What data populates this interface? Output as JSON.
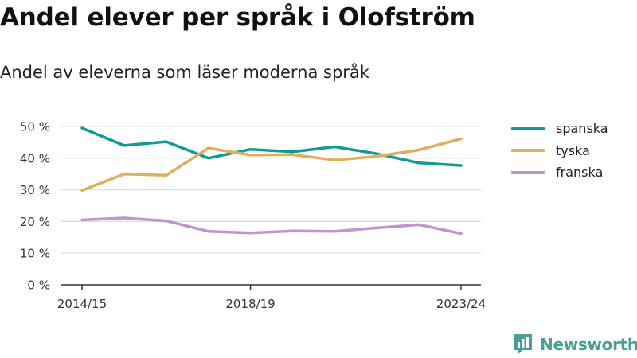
{
  "header": {
    "title": "Andel elever per språk i Olofström",
    "subtitle": "Andel av eleverna som läser moderna språk"
  },
  "brand": {
    "name": "Newsworthy",
    "icon": "newsworthy-logo-icon",
    "color": "#4a9e98"
  },
  "chart_data": {
    "type": "line",
    "x": [
      "2014/15",
      "2015/16",
      "2016/17",
      "2017/18",
      "2018/19",
      "2019/20",
      "2020/21",
      "2021/22",
      "2022/23",
      "2023/24"
    ],
    "x_tick_labels": [
      "2014/15",
      "2018/19",
      "2023/24"
    ],
    "y_ticks": [
      0,
      10,
      20,
      30,
      40,
      50
    ],
    "y_tick_labels": [
      "0 %",
      "10 %",
      "20 %",
      "30 %",
      "40 %",
      "50 %"
    ],
    "ylim": [
      0,
      50
    ],
    "grid": true,
    "legend": "right",
    "series": [
      {
        "name": "spanska",
        "color": "#0f9d93",
        "values": [
          49.5,
          44.0,
          45.2,
          40.0,
          42.8,
          42.0,
          43.6,
          41.4,
          38.5,
          37.7
        ]
      },
      {
        "name": "tyska",
        "color": "#deae5c",
        "values": [
          29.8,
          35.0,
          34.6,
          43.2,
          41.0,
          41.1,
          39.4,
          40.6,
          42.6,
          46.1
        ]
      },
      {
        "name": "franska",
        "color": "#bf96cb",
        "values": [
          20.5,
          21.1,
          20.2,
          16.9,
          16.4,
          17.0,
          16.9,
          18.0,
          19.0,
          16.2
        ]
      }
    ]
  }
}
